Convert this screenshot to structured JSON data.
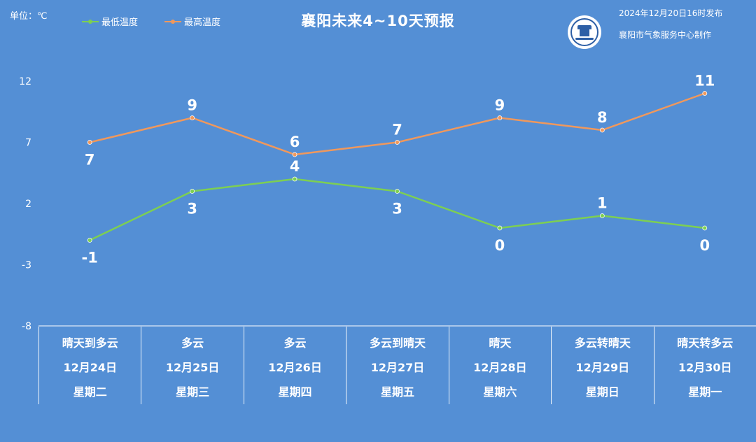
{
  "header": {
    "unit_label": "单位：℃",
    "title": "襄阳未来4~10天预报",
    "publish_time": "2024年12月20日16时发布",
    "publisher": "襄阳市气象服务中心制作",
    "logo_icon": "xiangyang-weather-logo-icon"
  },
  "chart_data": {
    "type": "line",
    "title": "襄阳未来4~10天预报",
    "ylabel": "单位：℃",
    "ylim": [
      -8,
      12
    ],
    "yticks": [
      12,
      7,
      2,
      -3,
      -8
    ],
    "categories": [
      "12月24日",
      "12月25日",
      "12月26日",
      "12月27日",
      "12月28日",
      "12月29日",
      "12月30日"
    ],
    "series": [
      {
        "name": "最低温度",
        "color": "#7dcf52",
        "values": [
          -1,
          3,
          4,
          3,
          0,
          1,
          0
        ],
        "labels": [
          "-1",
          "3",
          "4",
          "3",
          "0",
          "1",
          "0"
        ]
      },
      {
        "name": "最高温度",
        "color": "#f0985c",
        "values": [
          7,
          9,
          6,
          7,
          9,
          8,
          11
        ],
        "labels": [
          "7",
          "9",
          "6",
          "7",
          "9",
          "8",
          "11"
        ]
      }
    ],
    "legend_position": "top-left",
    "grid": false
  },
  "days": [
    {
      "weather": "晴天到多云",
      "date": "12月24日",
      "weekday": "星期二"
    },
    {
      "weather": "多云",
      "date": "12月25日",
      "weekday": "星期三"
    },
    {
      "weather": "多云",
      "date": "12月26日",
      "weekday": "星期四"
    },
    {
      "weather": "多云到晴天",
      "date": "12月27日",
      "weekday": "星期五"
    },
    {
      "weather": "晴天",
      "date": "12月28日",
      "weekday": "星期六"
    },
    {
      "weather": "多云转晴天",
      "date": "12月29日",
      "weekday": "星期日"
    },
    {
      "weather": "晴天转多云",
      "date": "12月30日",
      "weekday": "星期一"
    }
  ]
}
